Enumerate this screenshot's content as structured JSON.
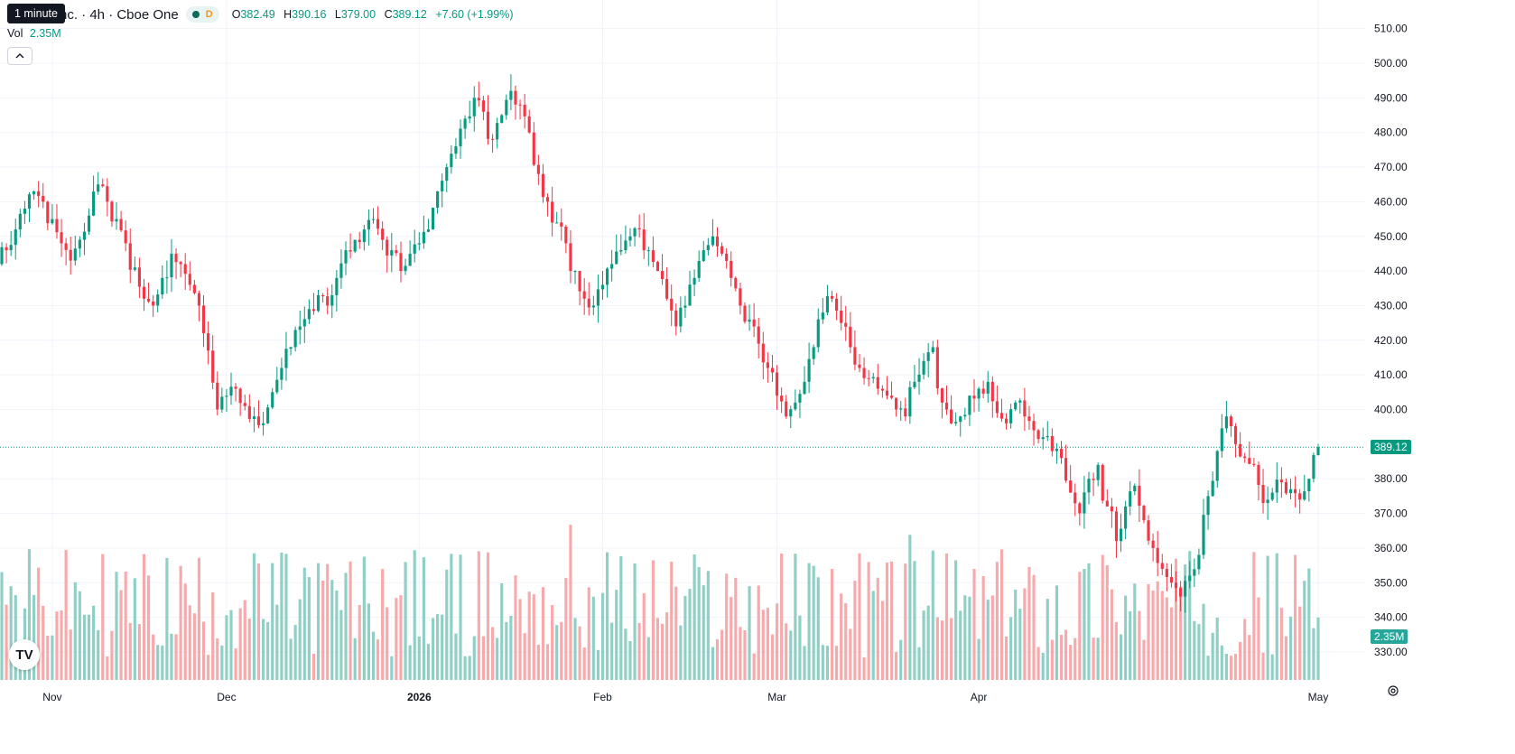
{
  "header": {
    "title": "nc. · 4h · Cboe One",
    "tooltip": "1 minute",
    "ohlc": {
      "o_label": "O",
      "o": "382.49",
      "h_label": "H",
      "h": "390.16",
      "l_label": "L",
      "l": "379.00",
      "c_label": "C",
      "c": "389.12",
      "change": "+7.60 (+1.99%)"
    },
    "d_badge": "D",
    "vol_label": "Vol",
    "vol_value": "2.35M",
    "collapse_icon": "chevron-up-icon"
  },
  "price_tag": "389.12",
  "volume_tag": "2.35M",
  "icons": {
    "logo": "tradingview-logo",
    "settings": "gear-icon"
  },
  "logo_text": "TV",
  "colors": {
    "up": "#089981",
    "down": "#f23645",
    "vol_up": "#8fcfc6",
    "vol_down": "#f7a9ab",
    "grid": "#f0f3fa",
    "last_price_line": "#089981"
  },
  "chart_data": {
    "type": "candlestick",
    "timeframe": "4h",
    "x_tick_labels": [
      "Nov",
      "Dec",
      "2026",
      "Feb",
      "Mar",
      "Apr",
      "May"
    ],
    "y_tick_labels": [
      "510.00",
      "500.00",
      "490.00",
      "480.00",
      "470.00",
      "460.00",
      "450.00",
      "440.00",
      "430.00",
      "420.00",
      "410.00",
      "400.00",
      "380.00",
      "370.00",
      "360.00",
      "350.00",
      "340.00",
      "330.00"
    ],
    "ylim": [
      325,
      513
    ],
    "last_price": 389.12,
    "grid": true,
    "candles_per_month": {
      "Oct": 11,
      "Nov": 38,
      "Dec": 42,
      "Jan": 40,
      "Feb": 38,
      "Mar": 44,
      "Apr": 41
    },
    "daily_closes": [
      446,
      452,
      458,
      463,
      460,
      455,
      448,
      443,
      449,
      456,
      465,
      460,
      455,
      448,
      441,
      432,
      430,
      438,
      445,
      442,
      436,
      430,
      417,
      400,
      404,
      406,
      401,
      398,
      396,
      405,
      412,
      418,
      424,
      429,
      433,
      430,
      438,
      446,
      449,
      452,
      455,
      449,
      446,
      440,
      445,
      448,
      452,
      463,
      470,
      476,
      484,
      490,
      486,
      478,
      485,
      492,
      488,
      480,
      468,
      460,
      454,
      448,
      440,
      432,
      430,
      436,
      442,
      446,
      450,
      452,
      446,
      440,
      432,
      424,
      430,
      438,
      446,
      450,
      445,
      438,
      430,
      426,
      419,
      412,
      404,
      398,
      402,
      408,
      418,
      428,
      432,
      425,
      418,
      412,
      409,
      406,
      404,
      400,
      398,
      408,
      414,
      418,
      402,
      396,
      398,
      404,
      406,
      408,
      399,
      396,
      402,
      398,
      394,
      392,
      388,
      386,
      376,
      370,
      380,
      384,
      372,
      362,
      372,
      378,
      368,
      360,
      354,
      350,
      346,
      352,
      358,
      375,
      388,
      398,
      390,
      386,
      384,
      373,
      376,
      379,
      377,
      374,
      380,
      389.12
    ],
    "volume_range": [
      0,
      2.8
    ]
  }
}
